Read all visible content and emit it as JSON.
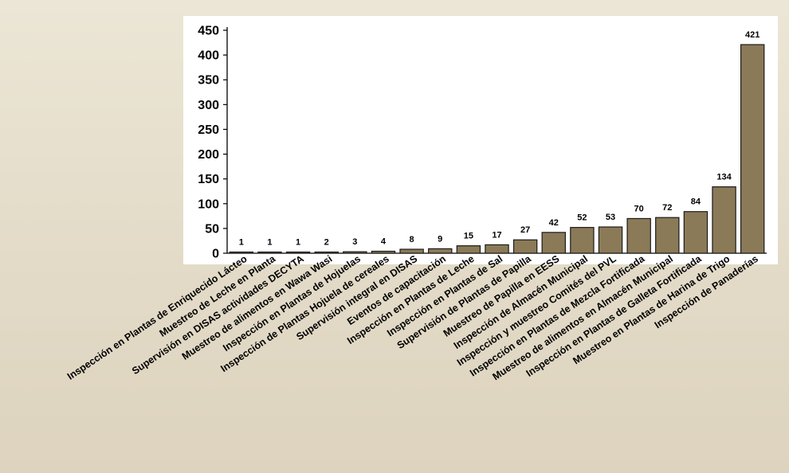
{
  "chart_data": {
    "type": "bar",
    "categories": [
      "Inspección en Plantas de Enriquecido Lácteo",
      "Muestreo de Leche en Planta",
      "Supervisión en DISAS actividades DECYTA",
      "Muestreo de alimentos en Wawa Wasi",
      "Inspección en Plantas de Hojuelas",
      "Inspección de Plantas Hojuela de cereales",
      "Supervisión integral en DISAS",
      "Eventos de capacitación",
      "Inspección en Plantas de Leche",
      "Inspección en Plantas de Sal",
      "Supervisión de Plantas de Papilla",
      "Muestreo de Papilla en EESS",
      "Inspección de Almacén Municipal",
      "Inspección y muestreo Comités del PVL",
      "Inspección en Plantas de Mezcla Fortificada",
      "Muestreo de alimentos en Almacén Municipal",
      "Inspección en Plantas de Galleta Fortificada",
      "Muestreo en Plantas de Harina de Trigo",
      "Inspección de Panaderías"
    ],
    "values": [
      1,
      1,
      1,
      2,
      3,
      4,
      8,
      9,
      15,
      17,
      27,
      42,
      52,
      53,
      70,
      72,
      84,
      134,
      421
    ],
    "data_labels": [
      "1",
      "1",
      "1",
      "2",
      "3",
      "4",
      "8",
      "9",
      "15",
      "17",
      "27",
      "42",
      "52",
      "53",
      "70",
      "72",
      "84",
      "134",
      "421"
    ],
    "y_ticks": [
      "0",
      "50",
      "100",
      "150",
      "200",
      "250",
      "300",
      "350",
      "400",
      "450"
    ],
    "ylim": [
      0,
      450
    ],
    "title": "",
    "xlabel": "",
    "ylabel": "",
    "grid": false,
    "legend": "none",
    "colors": {
      "bar": "#8b7a57",
      "bar_stroke": "#1a1a1a",
      "axis": "#000000",
      "text": "#000000",
      "plot_bg": "#ffffff"
    }
  }
}
